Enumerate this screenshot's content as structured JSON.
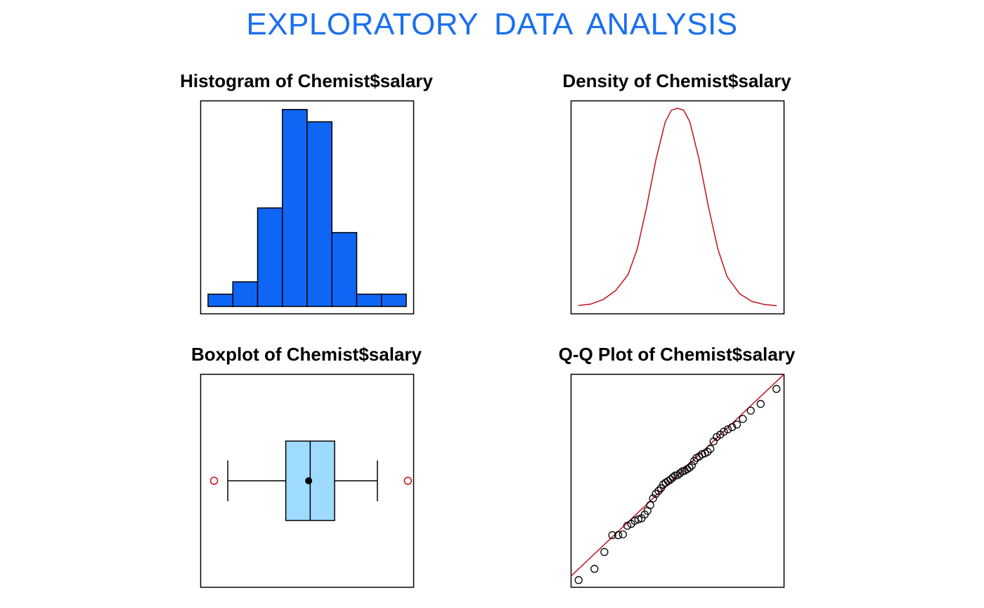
{
  "title": "EXPLORATORY  DATA  ANALYSIS",
  "title_color": "#1a6ff0",
  "colors": {
    "hist_fill": "#0f66f5",
    "density_line": "#c0101b",
    "box_fill": "#9fdbff",
    "outlier": "#c0101b",
    "qq_line": "#c0101b"
  },
  "chart_data": [
    {
      "type": "bar",
      "title": "Histogram of Chemist$salary",
      "bins": [
        0,
        1,
        2,
        3,
        4,
        5,
        6,
        7,
        8
      ],
      "counts": [
        1,
        2,
        8,
        16,
        15,
        6,
        1,
        1
      ],
      "ylim": [
        0,
        16.5
      ],
      "axes_shown": false
    },
    {
      "type": "line",
      "title": "Density of Chemist$salary",
      "x": [
        -3.2,
        -2.8,
        -2.4,
        -2.0,
        -1.6,
        -1.3,
        -1.0,
        -0.7,
        -0.4,
        -0.2,
        0.0,
        0.2,
        0.4,
        0.7,
        1.0,
        1.3,
        1.6,
        2.0,
        2.4,
        2.8,
        3.2
      ],
      "y": [
        0.005,
        0.012,
        0.035,
        0.08,
        0.16,
        0.29,
        0.5,
        0.74,
        0.93,
        0.99,
        1.0,
        0.99,
        0.93,
        0.74,
        0.5,
        0.29,
        0.15,
        0.065,
        0.025,
        0.01,
        0.004
      ],
      "axes_shown": false
    },
    {
      "type": "boxplot",
      "title": "Boxplot of Chemist$salary",
      "min_whisker": -2.6,
      "q1": -0.7,
      "median": 0.1,
      "mean": 0.05,
      "q3": 0.9,
      "max_whisker": 2.3,
      "outliers": [
        -3.05,
        3.3
      ],
      "xlim": [
        -3.5,
        3.5
      ],
      "axes_shown": false
    },
    {
      "type": "scatter",
      "title": "Q-Q Plot of Chemist$salary",
      "x": [
        -2.5,
        -2.1,
        -1.85,
        -1.65,
        -1.5,
        -1.38,
        -1.27,
        -1.17,
        -1.08,
        -0.99,
        -0.91,
        -0.83,
        -0.76,
        -0.69,
        -0.62,
        -0.55,
        -0.48,
        -0.42,
        -0.36,
        -0.3,
        -0.24,
        -0.18,
        -0.12,
        -0.06,
        0.0,
        0.06,
        0.12,
        0.18,
        0.24,
        0.3,
        0.36,
        0.42,
        0.48,
        0.55,
        0.62,
        0.69,
        0.76,
        0.83,
        0.91,
        0.99,
        1.08,
        1.17,
        1.27,
        1.38,
        1.5,
        1.65,
        1.85,
        2.1,
        2.5
      ],
      "y": [
        -2.8,
        -2.5,
        -2.05,
        -1.6,
        -1.6,
        -1.58,
        -1.35,
        -1.3,
        -1.22,
        -1.18,
        -1.15,
        -1.05,
        -0.95,
        -0.8,
        -0.62,
        -0.5,
        -0.42,
        -0.35,
        -0.25,
        -0.2,
        -0.16,
        -0.12,
        -0.06,
        -0.01,
        0.0,
        0.05,
        0.1,
        0.12,
        0.16,
        0.2,
        0.26,
        0.38,
        0.46,
        0.5,
        0.56,
        0.58,
        0.62,
        0.7,
        0.9,
        1.02,
        1.08,
        1.16,
        1.22,
        1.28,
        1.35,
        1.5,
        1.72,
        1.9,
        2.3
      ],
      "ref_line": {
        "intercept": 0.0,
        "slope": 1.0
      },
      "xlim": [
        -2.7,
        2.7
      ],
      "ylim": [
        -3.0,
        2.7
      ],
      "axes_shown": false
    }
  ]
}
